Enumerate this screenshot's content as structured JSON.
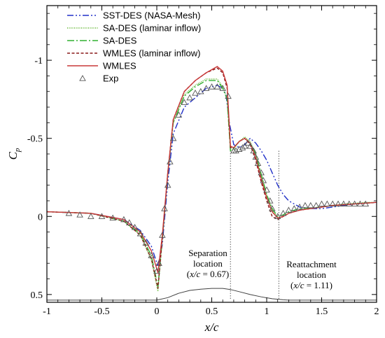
{
  "chart_data": {
    "type": "line",
    "xlabel": "x/c",
    "ylabel": "Cp",
    "ylabel_base": "C",
    "ylabel_sub": "p",
    "xlim": [
      -1,
      2
    ],
    "ylim": [
      0.55,
      -1.35
    ],
    "y_inverted": true,
    "x_ticks": [
      -1,
      -0.5,
      0,
      0.5,
      1,
      1.5,
      2
    ],
    "x_tick_labels": [
      "-1",
      "-0.5",
      "0",
      "0.5",
      "1",
      "1.5",
      "2"
    ],
    "y_ticks": [
      -1,
      -0.5,
      0,
      0.5
    ],
    "y_tick_labels": [
      "-1",
      "-0.5",
      "0",
      "0.5"
    ],
    "grid": false,
    "legend_position": "top-left",
    "series": [
      {
        "name": "SST-DES (NASA-Mesh)",
        "color": "#2030c8",
        "dash": "9,3,2,3,2,3",
        "marker": "none",
        "x": [
          -1,
          -0.6,
          -0.3,
          -0.15,
          -0.05,
          0.01,
          0.05,
          0.1,
          0.15,
          0.25,
          0.35,
          0.45,
          0.55,
          0.6,
          0.63,
          0.66,
          0.7,
          0.75,
          0.8,
          0.85,
          0.9,
          0.95,
          1.0,
          1.05,
          1.1,
          1.15,
          1.2,
          1.3,
          1.4,
          1.5,
          1.6,
          1.7,
          1.8,
          1.9,
          2.0
        ],
        "y": [
          -0.03,
          -0.02,
          0.02,
          0.09,
          0.19,
          0.32,
          0.18,
          -0.22,
          -0.53,
          -0.7,
          -0.76,
          -0.82,
          -0.84,
          -0.82,
          -0.78,
          -0.6,
          -0.46,
          -0.44,
          -0.46,
          -0.5,
          -0.47,
          -0.42,
          -0.36,
          -0.28,
          -0.2,
          -0.14,
          -0.1,
          -0.06,
          -0.05,
          -0.05,
          -0.06,
          -0.07,
          -0.08,
          -0.085,
          -0.09
        ]
      },
      {
        "name": "SA-DES (laminar inflow)",
        "color": "#55b020",
        "dash": "1,1.5",
        "marker": "none",
        "x": [
          -1,
          -0.6,
          -0.3,
          -0.15,
          -0.05,
          0.01,
          0.05,
          0.1,
          0.15,
          0.25,
          0.35,
          0.45,
          0.55,
          0.6,
          0.64,
          0.67,
          0.7,
          0.75,
          0.8,
          0.85,
          0.9,
          0.95,
          1.0,
          1.05,
          1.1,
          1.15,
          1.2,
          1.3,
          1.4,
          1.5,
          1.6,
          1.7,
          1.8,
          1.9,
          2.0
        ],
        "y": [
          -0.03,
          -0.02,
          0.03,
          0.12,
          0.28,
          0.48,
          0.15,
          -0.28,
          -0.6,
          -0.78,
          -0.84,
          -0.88,
          -0.88,
          -0.83,
          -0.75,
          -0.42,
          -0.43,
          -0.48,
          -0.51,
          -0.48,
          -0.4,
          -0.26,
          -0.14,
          -0.04,
          0.01,
          0.0,
          -0.02,
          -0.04,
          -0.05,
          -0.06,
          -0.07,
          -0.08,
          -0.085,
          -0.09,
          -0.09
        ]
      },
      {
        "name": "SA-DES",
        "color": "#30b030",
        "dash": "10,3,2,3",
        "marker": "none",
        "x": [
          -1,
          -0.6,
          -0.3,
          -0.15,
          -0.05,
          0.01,
          0.05,
          0.1,
          0.15,
          0.25,
          0.35,
          0.45,
          0.55,
          0.6,
          0.64,
          0.67,
          0.7,
          0.75,
          0.8,
          0.85,
          0.9,
          0.95,
          1.0,
          1.05,
          1.1,
          1.15,
          1.2,
          1.3,
          1.4,
          1.5,
          1.6,
          1.7,
          1.8,
          1.9,
          2.0
        ],
        "y": [
          -0.03,
          -0.02,
          0.03,
          0.11,
          0.25,
          0.45,
          0.14,
          -0.27,
          -0.6,
          -0.77,
          -0.83,
          -0.87,
          -0.87,
          -0.82,
          -0.75,
          -0.42,
          -0.44,
          -0.48,
          -0.5,
          -0.47,
          -0.4,
          -0.27,
          -0.14,
          -0.05,
          0.0,
          -0.01,
          -0.03,
          -0.05,
          -0.055,
          -0.06,
          -0.07,
          -0.075,
          -0.08,
          -0.085,
          -0.09
        ]
      },
      {
        "name": "WMLES (laminar inflow)",
        "color": "#8a1a1a",
        "dash": "4,2.5",
        "marker": "none",
        "x": [
          -1,
          -0.6,
          -0.3,
          -0.15,
          -0.05,
          0.01,
          0.05,
          0.1,
          0.15,
          0.25,
          0.35,
          0.45,
          0.55,
          0.6,
          0.64,
          0.67,
          0.7,
          0.75,
          0.8,
          0.85,
          0.9,
          0.95,
          1.0,
          1.05,
          1.1,
          1.15,
          1.2,
          1.3,
          1.4,
          1.5,
          1.6,
          1.7,
          1.8,
          1.9,
          2.0
        ],
        "y": [
          -0.03,
          -0.02,
          0.03,
          0.12,
          0.27,
          0.46,
          0.14,
          -0.28,
          -0.62,
          -0.8,
          -0.87,
          -0.92,
          -0.95,
          -0.92,
          -0.82,
          -0.44,
          -0.44,
          -0.48,
          -0.5,
          -0.46,
          -0.36,
          -0.22,
          -0.1,
          0.0,
          0.02,
          0.0,
          -0.02,
          -0.04,
          -0.05,
          -0.06,
          -0.07,
          -0.075,
          -0.08,
          -0.085,
          -0.09
        ]
      },
      {
        "name": "WMLES",
        "color": "#c83838",
        "dash": "none",
        "marker": "none",
        "x": [
          -1,
          -0.6,
          -0.3,
          -0.15,
          -0.05,
          0.01,
          0.05,
          0.1,
          0.15,
          0.25,
          0.35,
          0.45,
          0.55,
          0.6,
          0.64,
          0.67,
          0.7,
          0.75,
          0.8,
          0.85,
          0.9,
          0.95,
          1.0,
          1.05,
          1.1,
          1.15,
          1.2,
          1.3,
          1.4,
          1.5,
          1.6,
          1.7,
          1.8,
          1.9,
          2.0
        ],
        "y": [
          -0.03,
          -0.02,
          0.02,
          0.1,
          0.22,
          0.36,
          0.12,
          -0.28,
          -0.62,
          -0.8,
          -0.87,
          -0.92,
          -0.96,
          -0.93,
          -0.84,
          -0.45,
          -0.44,
          -0.48,
          -0.5,
          -0.47,
          -0.38,
          -0.24,
          -0.12,
          -0.03,
          0.01,
          0.0,
          -0.02,
          -0.04,
          -0.05,
          -0.06,
          -0.07,
          -0.075,
          -0.08,
          -0.085,
          -0.09
        ]
      },
      {
        "name": "Exp",
        "color": "#555555",
        "dash": "none",
        "marker": "triangle",
        "x": [
          -0.8,
          -0.7,
          -0.6,
          -0.5,
          -0.4,
          -0.3,
          -0.25,
          -0.2,
          -0.15,
          -0.1,
          -0.05,
          0.0,
          0.02,
          0.05,
          0.07,
          0.1,
          0.12,
          0.15,
          0.2,
          0.25,
          0.3,
          0.35,
          0.4,
          0.45,
          0.5,
          0.55,
          0.6,
          0.65,
          0.7,
          0.72,
          0.75,
          0.78,
          0.8,
          0.83,
          0.85,
          0.88,
          0.9,
          0.92,
          0.95,
          0.97,
          1.0,
          1.03,
          1.05,
          1.1,
          1.15,
          1.2,
          1.25,
          1.3,
          1.35,
          1.4,
          1.45,
          1.5,
          1.55,
          1.6,
          1.65,
          1.7,
          1.75,
          1.8,
          1.85,
          1.9
        ],
        "y": [
          -0.02,
          -0.01,
          0.0,
          0.0,
          0.01,
          0.02,
          0.04,
          0.07,
          0.11,
          0.17,
          0.25,
          0.35,
          0.3,
          0.12,
          -0.05,
          -0.2,
          -0.35,
          -0.5,
          -0.65,
          -0.73,
          -0.76,
          -0.79,
          -0.8,
          -0.82,
          -0.83,
          -0.83,
          -0.82,
          -0.77,
          -0.42,
          -0.42,
          -0.43,
          -0.44,
          -0.45,
          -0.47,
          -0.45,
          -0.42,
          -0.38,
          -0.34,
          -0.28,
          -0.23,
          -0.17,
          -0.1,
          -0.05,
          0.0,
          -0.02,
          -0.04,
          -0.05,
          -0.06,
          -0.07,
          -0.07,
          -0.07,
          -0.08,
          -0.08,
          -0.08,
          -0.08,
          -0.08,
          -0.08,
          -0.08,
          -0.08,
          -0.08
        ]
      }
    ],
    "geometry_profile": {
      "name": "bump surface",
      "color": "#404040",
      "x": [
        -1,
        0.0,
        0.1,
        0.2,
        0.3,
        0.4,
        0.5,
        0.6,
        0.67,
        0.75,
        0.85,
        0.95,
        1.05,
        1.15,
        1.2,
        2.0
      ],
      "y": [
        0.536,
        0.536,
        0.52,
        0.492,
        0.474,
        0.466,
        0.461,
        0.461,
        0.468,
        0.482,
        0.5,
        0.515,
        0.527,
        0.534,
        0.536,
        0.536
      ]
    },
    "annotations": [
      {
        "id": "separation",
        "line_x": 0.67,
        "lines": [
          {
            "prefix": "Separation",
            "math": "",
            "suffix": ""
          },
          {
            "prefix": "location",
            "math": "",
            "suffix": ""
          },
          {
            "prefix": "(",
            "math": "x/c",
            "suffix": " = 0.67)"
          }
        ]
      },
      {
        "id": "reattachment",
        "line_x": 1.11,
        "lines": [
          {
            "prefix": "Reattachment",
            "math": "",
            "suffix": ""
          },
          {
            "prefix": "location",
            "math": "",
            "suffix": ""
          },
          {
            "prefix": "(",
            "math": "x/c",
            "suffix": " = 1.11)"
          }
        ]
      }
    ]
  }
}
